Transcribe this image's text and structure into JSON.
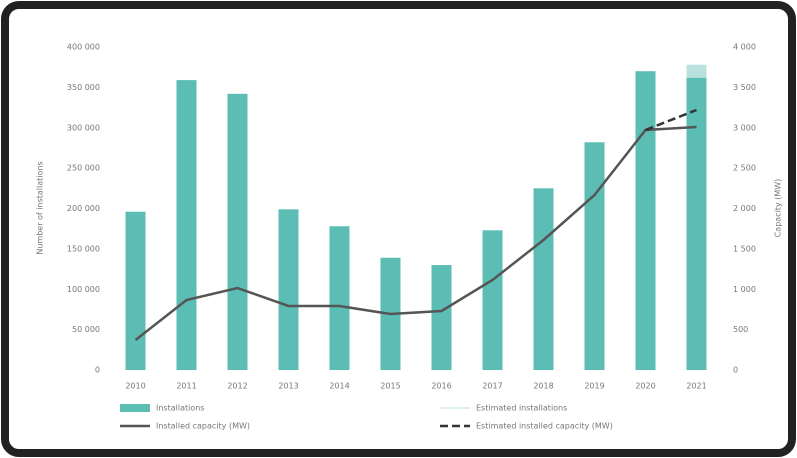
{
  "chart_data": {
    "type": "bar",
    "categories": [
      "2010",
      "2011",
      "2012",
      "2013",
      "2014",
      "2015",
      "2016",
      "2017",
      "2018",
      "2019",
      "2020",
      "2021"
    ],
    "y_label": "Number of installations",
    "y2_label": "Capacity (MW)",
    "ylim": [
      0,
      400000
    ],
    "yticks": [
      0,
      {
        "value": 50000,
        "label": "50 000"
      },
      {
        "value": 100000,
        "label": "100 000"
      },
      {
        "value": 150000,
        "label": "150 000"
      },
      {
        "value": 200000,
        "label": "200 000"
      },
      {
        "value": 250000,
        "label": "250 000"
      },
      {
        "value": 300000,
        "label": "300 000"
      },
      {
        "value": 350000,
        "label": "350 000"
      },
      {
        "value": 400000,
        "label": "400 000"
      }
    ],
    "y2lim": [
      0,
      4000
    ],
    "y2ticks": [
      0,
      500,
      {
        "value": 1000,
        "label": "1 000"
      },
      {
        "value": 1500,
        "label": "1 500"
      },
      {
        "value": 2000,
        "label": "2 000"
      },
      {
        "value": 2500,
        "label": "2 500"
      },
      {
        "value": 3000,
        "label": "3 000"
      },
      {
        "value": 3500,
        "label": "3 500"
      },
      {
        "value": 4000,
        "label": "4 000"
      }
    ],
    "series": [
      {
        "name": "Installations",
        "type": "bar",
        "color": "#5cbdb5",
        "values": [
          196000,
          359000,
          342000,
          199000,
          178000,
          139000,
          130000,
          173000,
          225000,
          282000,
          370000,
          362000
        ]
      },
      {
        "name": "Estimated installations",
        "type": "bar",
        "color": "#b9e1dd",
        "values": [
          null,
          null,
          null,
          null,
          null,
          null,
          null,
          null,
          null,
          null,
          null,
          16000
        ]
      },
      {
        "name": "Installed capacity (MW)",
        "type": "line",
        "axis": "y2",
        "color": "#555555",
        "values": [
          372,
          867,
          1015,
          793,
          793,
          693,
          731,
          1115,
          1610,
          2167,
          2972,
          3009
        ]
      },
      {
        "name": "Estimated installed capacity (MW)",
        "type": "line",
        "axis": "y2",
        "color": "#333333",
        "dashed": true,
        "values": [
          null,
          null,
          null,
          null,
          null,
          null,
          null,
          null,
          null,
          null,
          2972,
          3220
        ]
      }
    ]
  }
}
